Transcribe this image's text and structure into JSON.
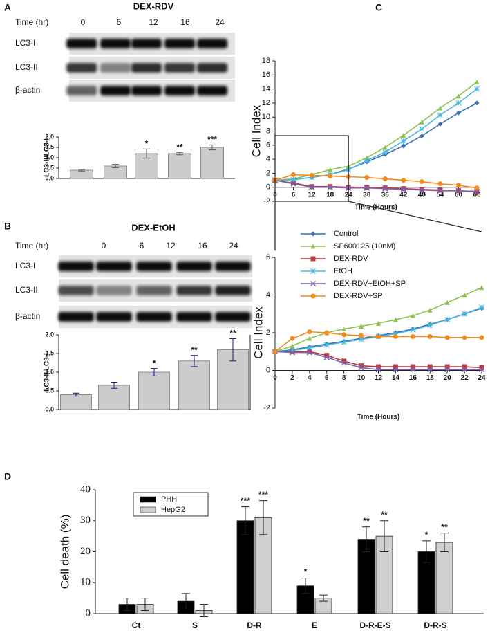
{
  "chart_data": [
    {
      "type": "bar",
      "panel": "A",
      "title": "DEX-RDV",
      "time_label": "Time (hr)",
      "lanes": [
        "0",
        "6",
        "12",
        "16",
        "24"
      ],
      "blot_rows": [
        "LC3-I",
        "LC3-II",
        "β-actin"
      ],
      "ylabel": "LC3-II/LC3-I",
      "values": [
        0.4,
        0.6,
        1.2,
        1.2,
        1.5
      ],
      "errors": [
        0.04,
        0.08,
        0.22,
        0.06,
        0.12
      ],
      "annotations": [
        null,
        null,
        "*",
        "**",
        "***"
      ],
      "color": "#cccccc",
      "error_color": "#555555",
      "ylim": [
        0,
        2
      ],
      "yticks": [
        {
          "value": 0,
          "label": "0.0"
        },
        {
          "value": 0.5,
          "label": "0.5"
        },
        {
          "value": 1,
          "label": "1.0"
        },
        {
          "value": 1.5,
          "label": "1.5"
        },
        {
          "value": 2,
          "label": "2.0"
        }
      ]
    },
    {
      "type": "bar",
      "panel": "B",
      "title": "DEX-EtOH",
      "time_label": "Time (hr)",
      "lanes": [
        "0",
        "6",
        "12",
        "16",
        "24"
      ],
      "blot_rows": [
        "LC3-I",
        "LC3-II",
        "β-actin"
      ],
      "ylabel": "LC3-II/LC3-I",
      "values": [
        0.4,
        0.65,
        1.0,
        1.3,
        1.6
      ],
      "errors": [
        0.04,
        0.08,
        0.1,
        0.15,
        0.3
      ],
      "annotations": [
        null,
        null,
        "*",
        "**",
        "**"
      ],
      "color": "#cccccc",
      "error_color": "#1a1a7a",
      "ylim": [
        0,
        2
      ],
      "yticks": [
        {
          "value": 0,
          "label": "0.0"
        },
        {
          "value": 0.5,
          "label": "0.5"
        },
        {
          "value": 1,
          "label": "1.0"
        },
        {
          "value": 1.5,
          "label": "1.5"
        },
        {
          "value": 2,
          "label": "2.0"
        }
      ]
    },
    {
      "type": "line",
      "panel": "C",
      "xlabel": "Time (Hours)",
      "ylabel": "Cell Index",
      "x": [
        0,
        6,
        12,
        18,
        24,
        30,
        36,
        42,
        48,
        54,
        60,
        66
      ],
      "xlim": [
        0,
        66
      ],
      "ylim": [
        -2,
        18
      ],
      "xticks": [
        0,
        6,
        12,
        18,
        24,
        30,
        36,
        42,
        48,
        54,
        60,
        66
      ],
      "yticks": [
        -2,
        0,
        2,
        4,
        6,
        8,
        10,
        12,
        14,
        16,
        18
      ],
      "series": [
        {
          "name": "Control",
          "color": "#3a6fb5",
          "marker": "diamond",
          "values": [
            1,
            1.1,
            1.4,
            1.8,
            2.6,
            3.6,
            4.7,
            5.9,
            7.3,
            9,
            10.6,
            12
          ]
        },
        {
          "name": "SP600125 (10nM)",
          "color": "#8dc152",
          "marker": "triangle",
          "values": [
            1,
            1.2,
            1.8,
            2.5,
            3.0,
            4.2,
            5.7,
            7.4,
            9.3,
            11.3,
            13,
            15
          ]
        },
        {
          "name": "DEX-RDV",
          "color": "#b83c3c",
          "marker": "square",
          "values": [
            1,
            0.6,
            0.1,
            0.1,
            0,
            0,
            -0.1,
            -0.2,
            -0.3,
            -0.4,
            -0.5,
            -0.6
          ]
        },
        {
          "name": "EtOH",
          "color": "#4bb7e0",
          "marker": "asterisk",
          "values": [
            1,
            1.1,
            1.4,
            1.8,
            2.5,
            3.8,
            5,
            6.6,
            8.3,
            10.3,
            12,
            14
          ]
        },
        {
          "name": "DEX-RDV+EtOH+SP",
          "color": "#7e5fb0",
          "marker": "x",
          "values": [
            1,
            0.5,
            0,
            0,
            -0.1,
            -0.1,
            -0.2,
            -0.3,
            -0.4,
            -0.5,
            -0.5,
            -0.6
          ]
        },
        {
          "name": "DEX-RDV+SP",
          "color": "#f28a1e",
          "marker": "circle",
          "values": [
            1,
            1.8,
            1.7,
            1.6,
            1.5,
            1.4,
            1.2,
            1.0,
            0.8,
            0.5,
            0.3,
            -0.1
          ]
        }
      ]
    },
    {
      "type": "line",
      "xlabel": "Time (Hours)",
      "ylabel": "Cell Index",
      "x": [
        0,
        2,
        4,
        6,
        8,
        10,
        12,
        14,
        16,
        18,
        20,
        22,
        24
      ],
      "xlim": [
        0,
        24
      ],
      "ylim": [
        -2,
        6
      ],
      "xticks": [
        0,
        2,
        4,
        6,
        8,
        10,
        12,
        14,
        16,
        18,
        20,
        22,
        24
      ],
      "yticks": [
        -2,
        0,
        2,
        4,
        6
      ],
      "series": [
        {
          "color": "#3a6fb5",
          "marker": "diamond",
          "values": [
            1,
            1.1,
            1.25,
            1.4,
            1.55,
            1.7,
            1.85,
            2.0,
            2.2,
            2.45,
            2.7,
            3.0,
            3.3
          ]
        },
        {
          "color": "#8dc152",
          "marker": "triangle",
          "values": [
            1,
            1.3,
            1.7,
            2.0,
            2.2,
            2.35,
            2.5,
            2.7,
            2.9,
            3.2,
            3.6,
            4.0,
            4.4
          ]
        },
        {
          "color": "#b83c3c",
          "marker": "square",
          "values": [
            1,
            1.0,
            1.0,
            0.8,
            0.5,
            0.25,
            0.2,
            0.2,
            0.2,
            0.2,
            0.2,
            0.2,
            0.15
          ]
        },
        {
          "color": "#4bb7e0",
          "marker": "asterisk",
          "values": [
            1,
            1.05,
            1.2,
            1.35,
            1.5,
            1.65,
            1.8,
            1.95,
            2.15,
            2.4,
            2.7,
            3.0,
            3.35
          ]
        },
        {
          "color": "#7e5fb0",
          "marker": "x",
          "values": [
            1,
            0.95,
            0.95,
            0.7,
            0.4,
            0.15,
            0.05,
            0.05,
            0.05,
            0.05,
            0.05,
            0.05,
            0.05
          ]
        },
        {
          "color": "#f28a1e",
          "marker": "circle",
          "values": [
            1,
            1.7,
            2.05,
            2.0,
            1.9,
            1.85,
            1.8,
            1.8,
            1.8,
            1.8,
            1.75,
            1.75,
            1.75
          ]
        }
      ]
    },
    {
      "type": "bar",
      "panel": "D",
      "ylabel": "Cell death (%)",
      "categories": [
        "Ct",
        "S",
        "D-R",
        "E",
        "D-R-E-S",
        "D-R-S"
      ],
      "ylim": [
        0,
        40
      ],
      "yticks": [
        0,
        10,
        20,
        30,
        40
      ],
      "series": [
        {
          "name": "PHH",
          "color": "#000000",
          "values": [
            3,
            4,
            30,
            9,
            24,
            20
          ],
          "errors": [
            2,
            2.5,
            4.5,
            2.5,
            4,
            3.5
          ],
          "annotations": [
            null,
            null,
            "***",
            "*",
            "**",
            "*"
          ]
        },
        {
          "name": "HepG2",
          "color": "#d0d0d0",
          "values": [
            3,
            1,
            31,
            5,
            25,
            23
          ],
          "errors": [
            2,
            2,
            5.5,
            1,
            5,
            3
          ],
          "annotations": [
            null,
            null,
            "***",
            null,
            "**",
            "**"
          ]
        }
      ]
    }
  ]
}
